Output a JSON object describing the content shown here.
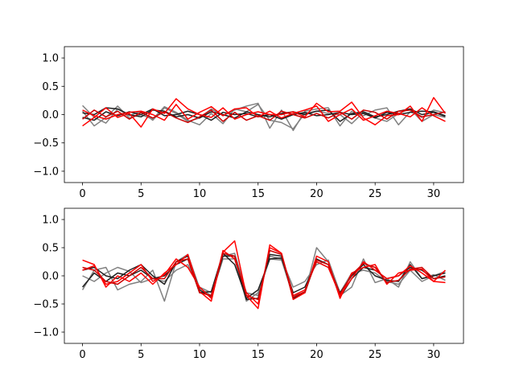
{
  "chart_data": [
    {
      "type": "line",
      "title": "",
      "xlabel": "",
      "ylabel": "",
      "xlim": [
        -1.55,
        32.55
      ],
      "ylim": [
        -1.2,
        1.2
      ],
      "xticks": [
        0,
        5,
        10,
        15,
        20,
        25,
        30
      ],
      "xtick_labels": [
        "0",
        "5",
        "10",
        "15",
        "20",
        "25",
        "30"
      ],
      "yticks": [
        -1.0,
        -0.5,
        0.0,
        0.5,
        1.0
      ],
      "ytick_labels": [
        "−1.0",
        "−0.5",
        "0.0",
        "0.5",
        "1.0"
      ],
      "grid": false,
      "colors": {
        "gray": "#808080",
        "black": "#202020",
        "red": "#ff0000",
        "darkred": "#cc0000"
      },
      "series": [
        {
          "color": "#808080",
          "values": [
            0.16,
            -0.05,
            -0.15,
            0.1,
            -0.02,
            0.06,
            -0.1,
            0.12,
            0.02,
            -0.12,
            -0.06,
            0.1,
            -0.02,
            0.08,
            0.15,
            0.2,
            -0.24,
            0.08,
            -0.28,
            0.06,
            0.1,
            0.12,
            -0.2,
            0.06,
            -0.02,
            0.08,
            0.12,
            -0.18,
            0.05,
            -0.05,
            0.08,
            0.03
          ]
        },
        {
          "color": "#808080",
          "values": [
            0.06,
            -0.2,
            -0.05,
            0.15,
            -0.06,
            0.0,
            -0.08,
            0.14,
            0.04,
            -0.1,
            -0.18,
            0.02,
            -0.16,
            0.1,
            0.05,
            0.18,
            -0.1,
            -0.14,
            -0.25,
            0.02,
            0.06,
            0.02,
            0.0,
            -0.16,
            0.04,
            -0.06,
            -0.12,
            0.02,
            0.1,
            -0.12,
            0.0,
            -0.05
          ]
        },
        {
          "color": "#202020",
          "values": [
            0.03,
            0.0,
            0.12,
            0.1,
            0.0,
            -0.04,
            0.08,
            0.06,
            -0.04,
            0.0,
            -0.06,
            0.05,
            0.0,
            -0.06,
            0.05,
            0.0,
            -0.04,
            0.02,
            0.05,
            0.0,
            0.06,
            0.08,
            -0.12,
            0.02,
            0.05,
            -0.04,
            0.0,
            0.06,
            0.1,
            0.0,
            0.04,
            -0.03
          ]
        },
        {
          "color": "#202020",
          "values": [
            -0.05,
            -0.1,
            0.05,
            -0.02,
            0.05,
            0.0,
            0.1,
            -0.02,
            0.0,
            0.06,
            0.0,
            -0.1,
            0.04,
            0.0,
            0.02,
            -0.04,
            0.0,
            -0.08,
            0.0,
            0.04,
            -0.02,
            0.0,
            0.04,
            0.0,
            0.02,
            -0.06,
            0.04,
            0.0,
            0.04,
            0.06,
            0.05,
            -0.02
          ]
        },
        {
          "color": "#ff0000",
          "values": [
            -0.2,
            -0.05,
            0.12,
            -0.05,
            0.02,
            -0.22,
            0.1,
            0.02,
            0.28,
            0.1,
            0.0,
            -0.05,
            0.12,
            -0.08,
            0.0,
            0.05,
            0.0,
            0.0,
            0.05,
            -0.04,
            0.2,
            0.05,
            0.06,
            0.22,
            -0.06,
            -0.18,
            -0.02,
            0.0,
            0.15,
            -0.12,
            0.3,
            0.02
          ]
        },
        {
          "color": "#ff0000",
          "values": [
            0.08,
            -0.02,
            -0.08,
            0.0,
            0.04,
            0.06,
            0.0,
            -0.1,
            0.18,
            -0.08,
            0.04,
            0.14,
            -0.02,
            0.1,
            0.12,
            -0.04,
            0.06,
            -0.06,
            0.02,
            0.08,
            0.15,
            -0.12,
            0.0,
            0.1,
            -0.1,
            -0.02,
            0.06,
            0.02,
            -0.04,
            0.12,
            -0.02,
            -0.12
          ]
        },
        {
          "color": "#cc0000",
          "values": [
            -0.08,
            0.08,
            -0.04,
            0.06,
            -0.08,
            0.04,
            -0.06,
            0.05,
            -0.06,
            -0.14,
            -0.04,
            0.08,
            -0.12,
            0.04,
            -0.1,
            -0.02,
            -0.1,
            0.06,
            0.0,
            -0.06,
            0.02,
            -0.06,
            0.04,
            -0.08,
            0.08,
            0.04,
            -0.08,
            0.06,
            0.08,
            -0.04,
            0.0,
            0.05
          ]
        }
      ]
    },
    {
      "type": "line",
      "title": "",
      "xlabel": "",
      "ylabel": "",
      "xlim": [
        -1.55,
        32.55
      ],
      "ylim": [
        -1.2,
        1.2
      ],
      "xticks": [
        0,
        5,
        10,
        15,
        20,
        25,
        30
      ],
      "xtick_labels": [
        "0",
        "5",
        "10",
        "15",
        "20",
        "25",
        "30"
      ],
      "yticks": [
        -1.0,
        -0.5,
        0.0,
        0.5,
        1.0
      ],
      "ytick_labels": [
        "−1.0",
        "−0.5",
        "0.0",
        "0.5",
        "1.0"
      ],
      "grid": false,
      "colors": {
        "gray": "#808080",
        "black": "#202020",
        "red": "#ff0000",
        "darkred": "#cc0000"
      },
      "series": [
        {
          "color": "#808080",
          "values": [
            -0.25,
            0.1,
            0.15,
            -0.25,
            -0.15,
            -0.1,
            0.1,
            -0.45,
            0.25,
            0.38,
            -0.22,
            -0.35,
            0.3,
            0.3,
            -0.45,
            -0.3,
            0.3,
            0.28,
            -0.35,
            -0.3,
            0.5,
            0.25,
            -0.35,
            -0.2,
            0.3,
            -0.12,
            -0.05,
            -0.2,
            0.25,
            -0.05,
            0.02,
            -0.08
          ]
        },
        {
          "color": "#808080",
          "values": [
            0.0,
            -0.1,
            0.05,
            0.15,
            0.08,
            -0.12,
            -0.05,
            -0.1,
            0.1,
            0.2,
            -0.2,
            -0.3,
            0.35,
            0.4,
            -0.3,
            -0.35,
            0.35,
            0.3,
            -0.2,
            -0.1,
            0.2,
            0.28,
            -0.3,
            0.05,
            0.1,
            0.05,
            -0.1,
            -0.15,
            0.1,
            -0.1,
            0.0,
            0.08
          ]
        },
        {
          "color": "#202020",
          "values": [
            -0.2,
            0.05,
            -0.1,
            0.05,
            0.0,
            0.1,
            -0.05,
            0.0,
            0.2,
            0.3,
            -0.3,
            -0.28,
            0.4,
            0.2,
            -0.4,
            -0.25,
            0.3,
            0.32,
            -0.3,
            -0.2,
            0.25,
            0.15,
            -0.3,
            0.0,
            0.2,
            0.0,
            -0.08,
            -0.1,
            0.2,
            -0.05,
            0.0,
            0.05
          ]
        },
        {
          "color": "#202020",
          "values": [
            0.1,
            0.15,
            0.0,
            -0.05,
            0.1,
            0.2,
            0.0,
            -0.15,
            0.25,
            0.35,
            -0.25,
            -0.38,
            0.35,
            0.35,
            -0.42,
            -0.4,
            0.38,
            0.35,
            -0.4,
            -0.3,
            0.3,
            0.2,
            -0.38,
            -0.05,
            0.15,
            0.1,
            -0.05,
            0.0,
            0.15,
            0.1,
            -0.05,
            0.0
          ]
        },
        {
          "color": "#ff0000",
          "values": [
            0.28,
            0.2,
            -0.2,
            0.0,
            -0.1,
            0.05,
            -0.15,
            0.05,
            0.2,
            0.38,
            -0.28,
            -0.45,
            0.42,
            0.62,
            -0.35,
            -0.58,
            0.55,
            0.4,
            -0.42,
            -0.3,
            0.35,
            0.25,
            -0.4,
            0.05,
            0.15,
            0.2,
            -0.15,
            0.05,
            0.1,
            0.12,
            -0.1,
            0.1
          ]
        },
        {
          "color": "#ff0000",
          "values": [
            0.1,
            0.18,
            -0.15,
            -0.1,
            0.05,
            0.2,
            -0.1,
            0.02,
            0.3,
            0.15,
            -0.2,
            -0.4,
            0.45,
            0.3,
            -0.3,
            -0.5,
            0.5,
            0.4,
            -0.35,
            -0.25,
            0.25,
            0.15,
            -0.35,
            -0.05,
            0.25,
            0.1,
            -0.05,
            0.0,
            0.18,
            0.05,
            -0.1,
            -0.12
          ]
        },
        {
          "color": "#cc0000",
          "values": [
            0.15,
            0.1,
            -0.1,
            -0.15,
            0.0,
            0.15,
            -0.05,
            -0.05,
            0.25,
            0.3,
            -0.3,
            -0.35,
            0.4,
            0.35,
            -0.35,
            -0.42,
            0.45,
            0.38,
            -0.38,
            -0.28,
            0.28,
            0.2,
            -0.32,
            0.02,
            0.22,
            0.15,
            -0.12,
            -0.08,
            0.12,
            0.15,
            -0.05,
            -0.02
          ]
        }
      ]
    }
  ]
}
